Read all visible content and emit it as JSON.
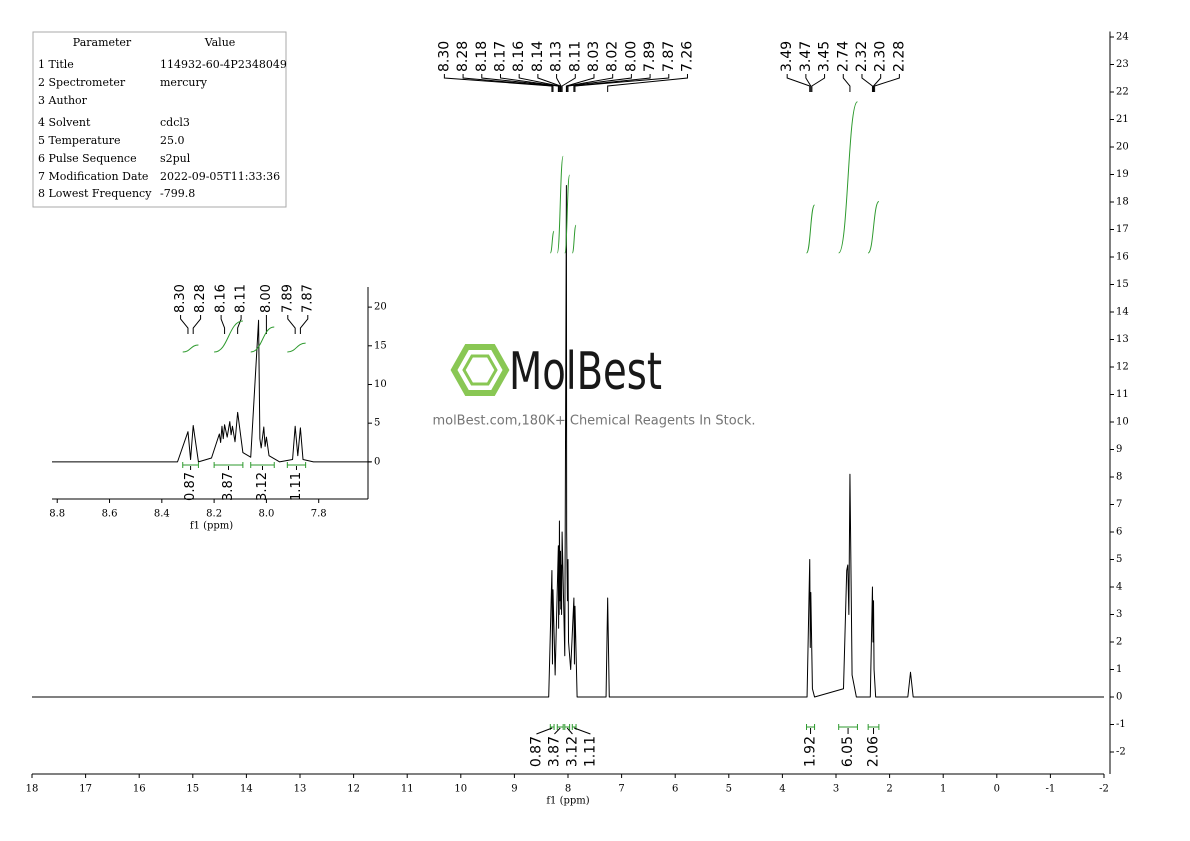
{
  "parameters": {
    "header": [
      "Parameter",
      "Value"
    ],
    "rows": [
      [
        "1 Title",
        "114932-60-4P2348049"
      ],
      [
        "2 Spectrometer",
        "mercury"
      ],
      [
        "3 Author"
      ],
      [
        "4 Solvent",
        "cdcl3"
      ],
      [
        "5 Temperature",
        "25.0"
      ],
      [
        "6 Pulse Sequence",
        "s2pul"
      ],
      [
        "7 Modification Date",
        "2022-09-05T11:33:36"
      ],
      [
        "8 Lowest Frequency",
        "-799.8"
      ]
    ]
  },
  "watermark": {
    "brand": "MolBest",
    "tagline": "molBest.com,180K+ Chemical Reagents In Stock."
  },
  "chart_data": [
    {
      "type": "line",
      "xlabel": "f1 (ppm)",
      "color": "#000000",
      "integral_color": "#2e9a2e",
      "x": [
        18,
        8.36,
        8.3,
        8.29,
        8.28,
        8.24,
        8.18,
        8.175,
        8.17,
        8.165,
        8.16,
        8.15,
        8.14,
        8.135,
        8.13,
        8.12,
        8.11,
        8.06,
        8.03,
        8.025,
        8.02,
        8.01,
        8.0,
        7.99,
        7.95,
        7.89,
        7.88,
        7.87,
        7.83,
        7.29,
        7.26,
        7.23,
        3.54,
        3.49,
        3.48,
        3.47,
        3.44,
        3.4,
        2.86,
        2.8,
        2.78,
        2.76,
        2.74,
        2.72,
        2.7,
        2.62,
        2.36,
        2.32,
        2.31,
        2.3,
        2.29,
        2.26,
        1.66,
        1.61,
        1.56,
        -2
      ],
      "values": [
        0,
        0,
        4.6,
        1.2,
        3.9,
        0.8,
        5.5,
        2.5,
        5.0,
        3.0,
        6.4,
        3.5,
        5.3,
        3.2,
        4.8,
        3.0,
        6.0,
        1.5,
        18.6,
        6.0,
        5.0,
        3.5,
        5.0,
        2.0,
        1.0,
        3.6,
        1.2,
        3.3,
        0,
        0,
        3.6,
        0,
        0,
        5.0,
        1.8,
        3.8,
        0.3,
        0,
        0.3,
        4.6,
        4.8,
        3.0,
        8.1,
        4.5,
        0.8,
        0,
        0,
        4.0,
        2.0,
        3.5,
        1.0,
        0,
        0,
        0.9,
        0,
        0
      ],
      "xlim": [
        18,
        -2
      ],
      "xticks": [
        18,
        17,
        16,
        15,
        14,
        13,
        12,
        11,
        10,
        9,
        8,
        7,
        6,
        5,
        4,
        3,
        2,
        1,
        0,
        -1,
        -2
      ],
      "ylim": [
        -2.8,
        24.2
      ],
      "yticks": [
        -2,
        -1,
        0,
        1,
        2,
        3,
        4,
        5,
        6,
        7,
        8,
        9,
        10,
        11,
        12,
        13,
        14,
        15,
        16,
        17,
        18,
        19,
        20,
        21,
        22,
        23,
        24
      ],
      "peaks": [
        {
          "value": 8.3,
          "label": "8.30"
        },
        8.28,
        8.18,
        8.17,
        8.16,
        8.14,
        8.13,
        8.11,
        8.03,
        8.02,
        {
          "value": 8,
          "label": "8.00"
        },
        7.89,
        7.87,
        7.26,
        3.49,
        3.47,
        3.45,
        2.74,
        2.32,
        {
          "value": 2.3,
          "label": "2.30"
        },
        2.28
      ],
      "integrals": [
        {
          "from": 8.33,
          "to": 8.26,
          "value": 0.87
        },
        {
          "from": 8.2,
          "to": 8.09,
          "value": 3.87
        },
        {
          "from": 8.06,
          "to": 7.97,
          "value": 3.12
        },
        {
          "from": 7.92,
          "to": 7.85,
          "value": 1.11
        },
        {
          "from": 3.55,
          "to": 3.4,
          "value": 1.92
        },
        {
          "from": 2.95,
          "to": 2.6,
          "value": 6.05
        },
        {
          "from": 2.4,
          "to": 2.2,
          "value": 2.06
        }
      ]
    },
    {
      "type": "line",
      "xlabel": "f1 (ppm)",
      "color": "#000000",
      "integral_color": "#2e9a2e",
      "x": [
        8.82,
        8.34,
        8.3,
        8.29,
        8.28,
        8.26,
        8.21,
        8.18,
        8.175,
        8.17,
        8.165,
        8.16,
        8.15,
        8.14,
        8.135,
        8.13,
        8.12,
        8.11,
        8.09,
        8.06,
        8.03,
        8.025,
        8.02,
        8.01,
        8.005,
        8.0,
        7.99,
        7.95,
        7.9,
        7.89,
        7.88,
        7.87,
        7.86,
        7.82,
        7.6
      ],
      "values": [
        0,
        0,
        3.9,
        0.3,
        4.7,
        0,
        0.5,
        3.6,
        2.5,
        4.6,
        3.0,
        4.8,
        3.2,
        5.2,
        3.5,
        4.6,
        2.6,
        6.4,
        1.2,
        0.6,
        18.3,
        3.0,
        1.8,
        4.5,
        2.0,
        3.2,
        0.8,
        0,
        0.3,
        4.6,
        0.8,
        4.4,
        0.3,
        0,
        0
      ],
      "xlim": [
        8.82,
        7.6
      ],
      "xticks": [
        8.8,
        8.6,
        8.4,
        8.2,
        {
          "value": 8,
          "label": "8.0"
        },
        7.8
      ],
      "ylim": [
        -4.8,
        22.6
      ],
      "yticks": [
        0,
        5,
        10,
        15,
        20
      ],
      "peaks": [
        {
          "value": 8.3,
          "label": "8.30"
        },
        8.28,
        8.16,
        8.11,
        {
          "value": 8,
          "label": "8.00"
        },
        7.89,
        7.87
      ],
      "integrals": [
        {
          "from": 8.32,
          "to": 8.26,
          "value": 0.87
        },
        {
          "from": 8.2,
          "to": 8.09,
          "value": 3.87
        },
        {
          "from": 8.06,
          "to": 7.97,
          "value": 3.12
        },
        {
          "from": 7.92,
          "to": 7.85,
          "value": 1.11
        }
      ]
    }
  ]
}
